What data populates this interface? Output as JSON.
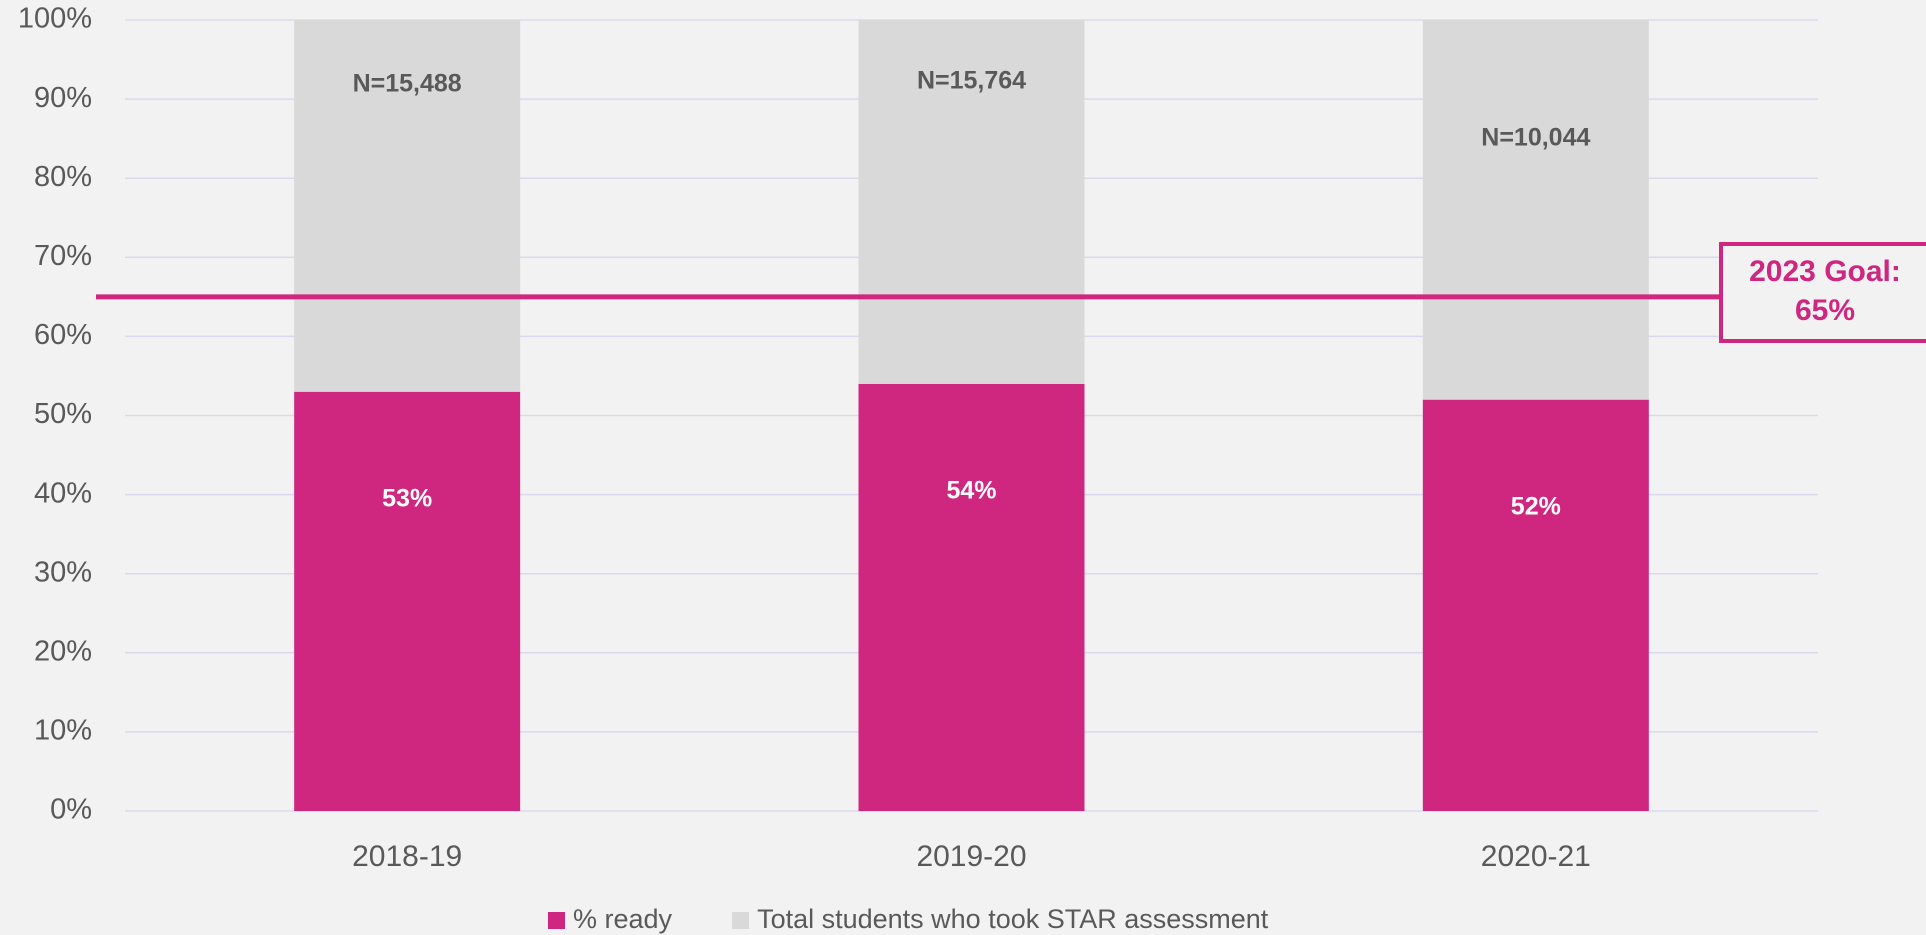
{
  "chart_data": {
    "type": "stacked_bar",
    "categories": [
      "2018-19",
      "2019-20",
      "2020-21"
    ],
    "series": [
      {
        "name": "% ready",
        "color": "#cf2680",
        "values": [
          53,
          54,
          52
        ],
        "value_labels": [
          "53%",
          "54%",
          "52%"
        ]
      },
      {
        "name": "Total students who took STAR assessment",
        "color": "#d9d9d9",
        "values": [
          47,
          46,
          48
        ]
      }
    ],
    "annotations": [
      "N=15,488",
      "N=15,764",
      "N=10,044"
    ],
    "goal": {
      "value": 65,
      "color": "#cf2680",
      "label": [
        "2023 Goal:",
        "65%"
      ]
    },
    "ylim": [
      0,
      100
    ],
    "yticks": [
      {
        "value": 0,
        "label": "0%"
      },
      {
        "value": 10,
        "label": "10%"
      },
      {
        "value": 20,
        "label": "20%"
      },
      {
        "value": 30,
        "label": "30%"
      },
      {
        "value": 40,
        "label": "40%"
      },
      {
        "value": 50,
        "label": "50%"
      },
      {
        "value": 60,
        "label": "60%"
      },
      {
        "value": 70,
        "label": "70%"
      },
      {
        "value": 80,
        "label": "80%"
      },
      {
        "value": 90,
        "label": "90%"
      },
      {
        "value": 100,
        "label": "100%"
      }
    ],
    "grid": true,
    "legend": "bottom"
  }
}
